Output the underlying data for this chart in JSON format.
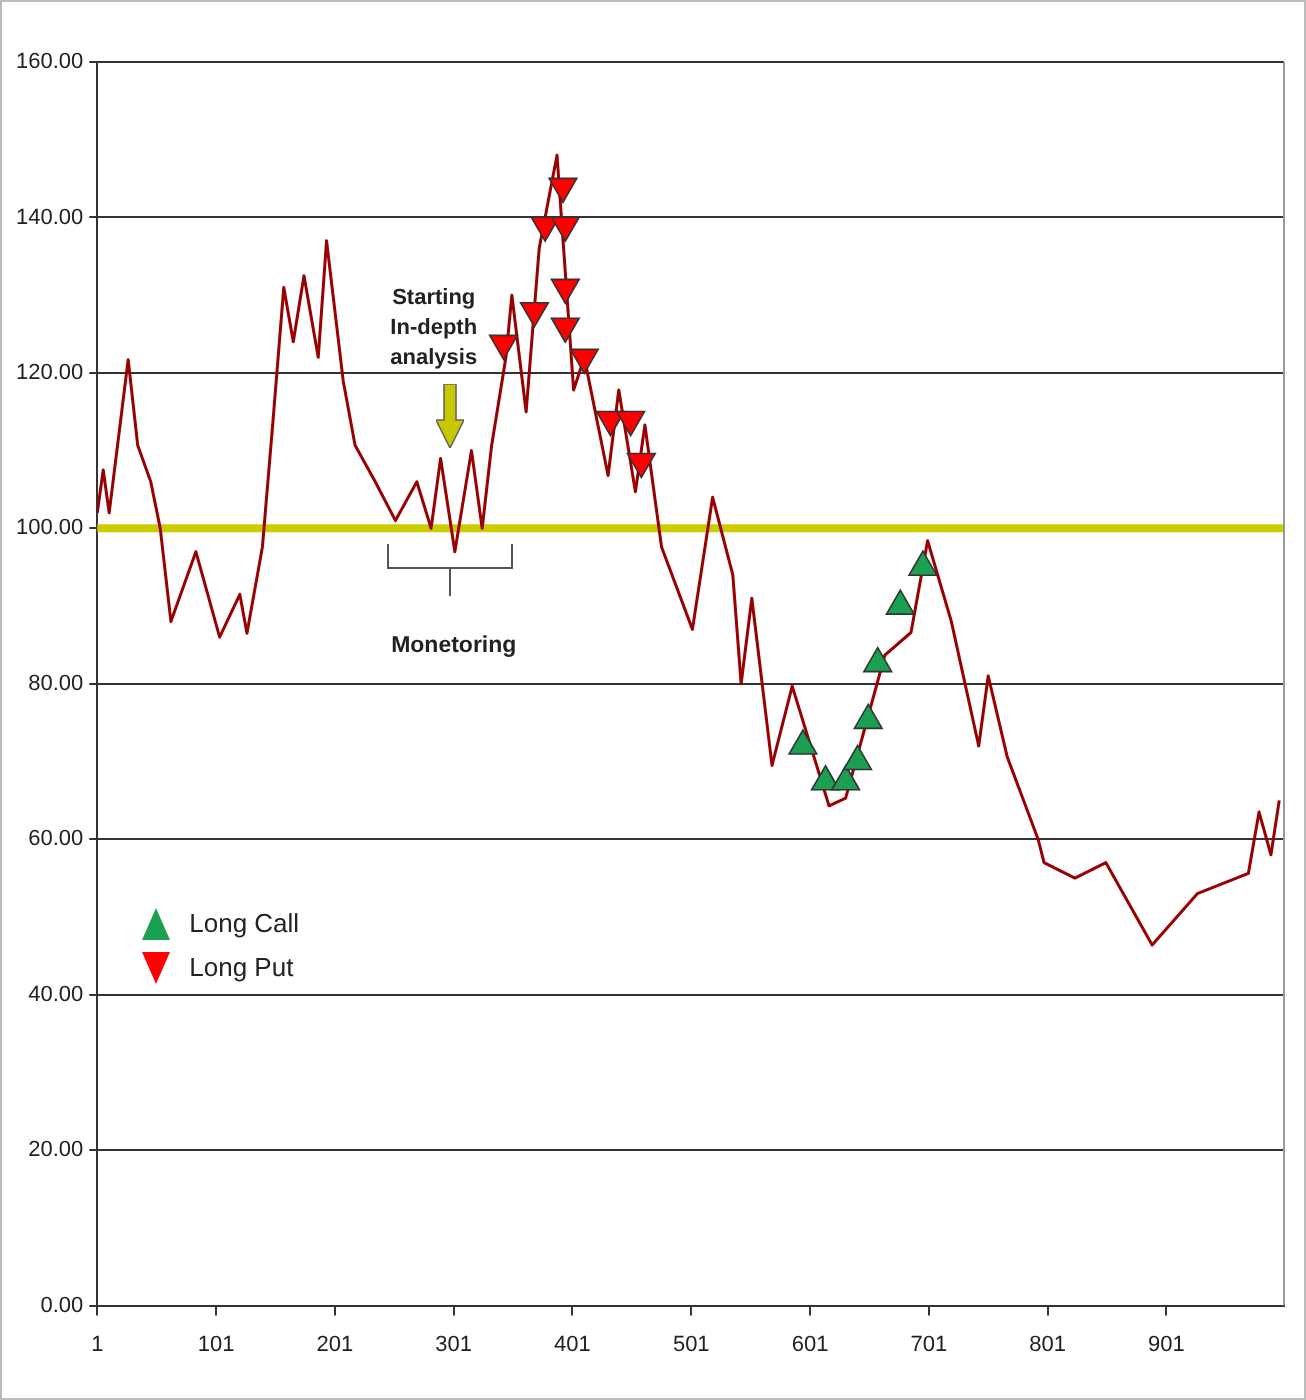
{
  "chart_data": {
    "type": "line",
    "xlim": [
      1,
      1000
    ],
    "xticks": [
      1,
      101,
      201,
      301,
      401,
      501,
      601,
      701,
      801,
      901
    ],
    "ylim": [
      0,
      160
    ],
    "yticks": [
      {
        "value": 0,
        "label": "0.00"
      },
      {
        "value": 20,
        "label": "20.00"
      },
      {
        "value": 40,
        "label": "40.00"
      },
      {
        "value": 60,
        "label": "60.00"
      },
      {
        "value": 80,
        "label": "80.00"
      },
      {
        "value": 100,
        "label": "100.00"
      },
      {
        "value": 120,
        "label": "120.00"
      },
      {
        "value": 140,
        "label": "140.00"
      },
      {
        "value": 160,
        "label": "160.00"
      }
    ],
    "grid": "y",
    "legend": "left",
    "series": [
      {
        "color": "#990000",
        "marker": "none",
        "x": [
          1,
          6,
          11,
          27,
          35,
          46,
          54,
          63,
          84,
          104,
          121,
          127,
          140,
          149,
          158,
          166,
          175,
          187,
          194,
          208,
          218,
          235,
          252,
          270,
          282,
          290,
          302,
          316,
          325,
          333,
          345,
          350,
          362,
          373,
          388,
          402,
          411,
          431,
          440,
          454,
          462,
          476,
          502,
          519,
          536,
          543,
          552,
          569,
          586,
          617,
          631,
          664,
          686,
          700,
          720,
          743,
          751,
          767,
          793,
          798,
          824,
          850,
          889,
          927,
          970,
          979,
          989,
          996
        ],
        "values": [
          102,
          107.5,
          102,
          121.7,
          110.7,
          106,
          100,
          88,
          97,
          86,
          91.5,
          86.5,
          97.6,
          114,
          131,
          124,
          132.5,
          122,
          137,
          119,
          110.7,
          106,
          101,
          106,
          100,
          109,
          97,
          110,
          100,
          110.7,
          122,
          130,
          115,
          136,
          148,
          117.8,
          122,
          106.8,
          117.8,
          104.7,
          113.3,
          97.6,
          87,
          104,
          94,
          80,
          91,
          69.5,
          79.7,
          64.3,
          65.3,
          83.7,
          86.6,
          98.4,
          88,
          72,
          81,
          70.6,
          60,
          57,
          55,
          57,
          46.4,
          53,
          55.6,
          63.5,
          58,
          65
        ]
      },
      {
        "type": "scatter",
        "name": "Long Call",
        "color": "#1aa050",
        "marker": "triangle",
        "x": [
          595,
          614,
          631,
          641,
          650,
          658,
          677,
          696
        ],
        "values": [
          72,
          67.4,
          67.4,
          70,
          75.3,
          82.6,
          90,
          95
        ]
      },
      {
        "type": "scatter",
        "name": "Long Put",
        "color": "#ff0000",
        "marker": "triangle-down",
        "x": [
          343,
          369,
          378,
          393,
          395,
          395,
          395,
          411,
          433,
          450,
          459
        ],
        "values": [
          123.8,
          128,
          139,
          144,
          139,
          131,
          126,
          122,
          114,
          114,
          108.6
        ]
      }
    ],
    "ref_lines": [
      {
        "axis": "y",
        "value": 100,
        "color": "#cccc00"
      }
    ],
    "annotations": [
      "Starting In-depth analysis",
      "Monetoring"
    ]
  }
}
